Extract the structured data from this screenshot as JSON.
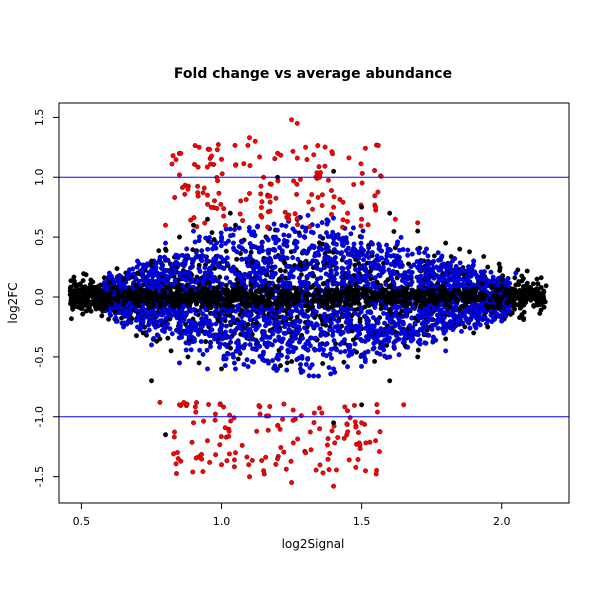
{
  "chart_data": {
    "type": "scatter",
    "title": "Fold change vs average abundance",
    "xlabel": "log2Signal",
    "ylabel": "log2FC",
    "xlim": [
      0.42,
      2.24
    ],
    "ylim": [
      -1.72,
      1.62
    ],
    "x_ticks": [
      "0.5",
      "1.0",
      "1.5",
      "2.0"
    ],
    "y_ticks": [
      "-1.5",
      "-1.0",
      "-0.5",
      "0.0",
      "0.5",
      "1.0",
      "1.5"
    ],
    "reference_lines_y": [
      1.0,
      -1.0
    ],
    "grid": false,
    "legend": "none",
    "colors": {
      "background_points": "#000000",
      "mid_points": "#0000ff",
      "high_fc_points": "#ff0000",
      "reference_line": "#0000ff"
    },
    "series": [
      {
        "color_key": "background_points",
        "points": [
          [
            0.46,
            0.02
          ],
          [
            0.48,
            -0.03
          ],
          [
            0.5,
            0.05
          ],
          [
            0.52,
            -0.06
          ],
          [
            0.55,
            0.08
          ],
          [
            0.58,
            -0.1
          ],
          [
            0.6,
            0.12
          ],
          [
            0.62,
            -0.12
          ],
          [
            0.65,
            0.15
          ],
          [
            0.68,
            -0.18
          ],
          [
            0.7,
            0.2
          ],
          [
            0.72,
            -0.3
          ],
          [
            0.75,
            0.3
          ],
          [
            0.78,
            -0.35
          ],
          [
            0.8,
            0.4
          ],
          [
            0.82,
            -0.45
          ],
          [
            0.85,
            0.5
          ],
          [
            0.88,
            -0.5
          ],
          [
            0.9,
            0.6
          ],
          [
            0.92,
            -0.55
          ],
          [
            0.95,
            0.65
          ],
          [
            1.0,
            -0.6
          ],
          [
            1.05,
            0.6
          ],
          [
            1.2,
            1.0
          ],
          [
            1.4,
            1.05
          ],
          [
            1.5,
            0.75
          ],
          [
            1.6,
            0.7
          ],
          [
            1.7,
            0.55
          ],
          [
            1.8,
            0.45
          ],
          [
            1.85,
            0.4
          ],
          [
            1.9,
            0.3
          ],
          [
            1.95,
            0.25
          ],
          [
            2.0,
            0.15
          ],
          [
            2.05,
            0.1
          ],
          [
            2.1,
            0.08
          ],
          [
            2.15,
            0.05
          ],
          [
            2.0,
            -0.2
          ],
          [
            1.95,
            -0.25
          ],
          [
            1.9,
            -0.3
          ],
          [
            1.8,
            -0.35
          ],
          [
            1.7,
            -0.5
          ],
          [
            1.6,
            -0.7
          ],
          [
            1.5,
            -0.9
          ],
          [
            1.4,
            -1.05
          ],
          [
            0.8,
            -1.15
          ],
          [
            0.75,
            -0.7
          ]
        ]
      },
      {
        "color_key": "high_fc_points",
        "points": [
          [
            0.85,
            1.02
          ],
          [
            0.88,
            0.9
          ],
          [
            0.92,
            1.25
          ],
          [
            0.95,
            0.85
          ],
          [
            1.0,
            1.15
          ],
          [
            1.05,
            1.1
          ],
          [
            1.1,
            1.33
          ],
          [
            1.12,
            1.3
          ],
          [
            1.15,
            1.0
          ],
          [
            1.2,
            1.2
          ],
          [
            1.25,
            1.48
          ],
          [
            1.27,
            1.45
          ],
          [
            1.3,
            1.25
          ],
          [
            1.35,
            1.0
          ],
          [
            1.4,
            0.75
          ],
          [
            1.45,
            0.7
          ],
          [
            1.5,
            0.65
          ],
          [
            1.55,
            0.75
          ],
          [
            1.62,
            0.65
          ],
          [
            1.7,
            0.62
          ],
          [
            0.8,
            0.6
          ],
          [
            0.78,
            -0.88
          ],
          [
            0.85,
            -0.9
          ],
          [
            0.9,
            -1.05
          ],
          [
            0.95,
            -1.2
          ],
          [
            1.0,
            -1.4
          ],
          [
            1.05,
            -1.3
          ],
          [
            1.1,
            -1.5
          ],
          [
            1.15,
            -1.45
          ],
          [
            1.2,
            -1.35
          ],
          [
            1.25,
            -1.55
          ],
          [
            1.3,
            -1.3
          ],
          [
            1.35,
            -1.1
          ],
          [
            1.4,
            -1.58
          ],
          [
            1.45,
            -0.95
          ],
          [
            1.5,
            -1.05
          ],
          [
            1.55,
            -1.2
          ],
          [
            1.65,
            -0.9
          ]
        ]
      },
      {
        "color_key": "mid_points",
        "points": [
          [
            0.6,
            0.2
          ],
          [
            0.65,
            -0.25
          ],
          [
            0.7,
            0.3
          ],
          [
            0.75,
            -0.4
          ],
          [
            0.8,
            0.45
          ],
          [
            0.85,
            -0.55
          ],
          [
            0.9,
            0.55
          ],
          [
            0.95,
            -0.6
          ],
          [
            1.0,
            0.5
          ],
          [
            1.05,
            -0.6
          ],
          [
            1.1,
            0.55
          ],
          [
            1.2,
            -0.6
          ],
          [
            1.3,
            0.55
          ],
          [
            1.4,
            -0.6
          ],
          [
            1.5,
            0.5
          ],
          [
            1.6,
            -0.5
          ],
          [
            1.7,
            0.4
          ],
          [
            1.8,
            -0.45
          ],
          [
            1.9,
            0.3
          ],
          [
            2.0,
            -0.2
          ],
          [
            2.05,
            0.2
          ]
        ]
      }
    ]
  }
}
